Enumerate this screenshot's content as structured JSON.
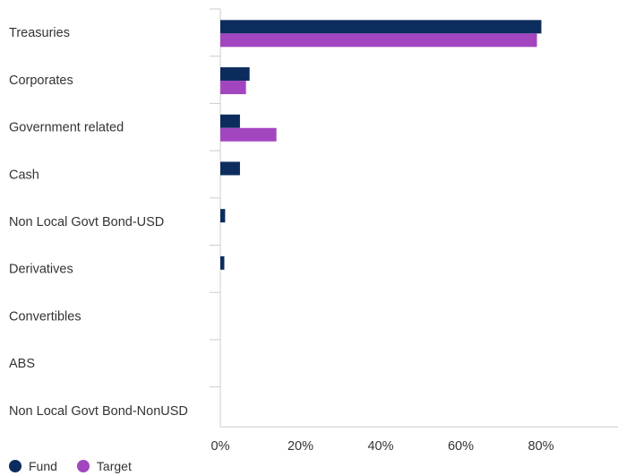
{
  "chart_data": {
    "type": "bar",
    "orientation": "horizontal",
    "categories": [
      "Treasuries",
      "Corporates",
      "Government related",
      "Cash",
      "Non Local Govt Bond-USD",
      "Derivatives",
      "Convertibles",
      "ABS",
      "Non Local Govt Bond-NonUSD"
    ],
    "series": [
      {
        "name": "Fund",
        "color": "#0d2c5e",
        "values": [
          80.1,
          7.3,
          4.9,
          4.9,
          1.2,
          1.0,
          0,
          0,
          0
        ]
      },
      {
        "name": "Target",
        "color": "#a246c0",
        "values": [
          79.0,
          6.4,
          14.0,
          0,
          0,
          0,
          0,
          0,
          0
        ]
      }
    ],
    "xlim": [
      0,
      100
    ],
    "ticks": [
      0,
      20,
      40,
      60,
      80
    ],
    "tick_labels": [
      "0%",
      "20%",
      "40%",
      "60%",
      "80%"
    ],
    "grid": false,
    "legend_placement": "bottom-left",
    "title": "",
    "xlabel": "",
    "ylabel": ""
  }
}
